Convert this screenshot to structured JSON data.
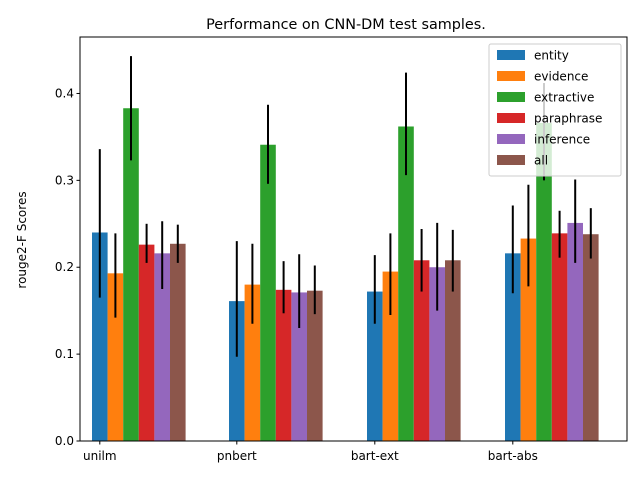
{
  "chart_data": {
    "type": "bar",
    "title": "Performance on CNN-DM test samples.",
    "xlabel": "",
    "ylabel": "rouge2-F Scores",
    "ylim": [
      0,
      0.465
    ],
    "yticks": [
      0.0,
      0.1,
      0.2,
      0.3,
      0.4
    ],
    "ytick_labels": [
      "0.0",
      "0.1",
      "0.2",
      "0.3",
      "0.4"
    ],
    "categories": [
      "unilm",
      "pnbert",
      "bart-ext",
      "bart-abs"
    ],
    "legend_position": "top-right",
    "grid": false,
    "series": [
      {
        "name": "entity",
        "color": "#1f77b4",
        "values": [
          0.24,
          0.161,
          0.172,
          0.216
        ],
        "err_low": [
          0.165,
          0.097,
          0.135,
          0.17
        ],
        "err_high": [
          0.336,
          0.23,
          0.214,
          0.271
        ]
      },
      {
        "name": "evidence",
        "color": "#ff7f0e",
        "values": [
          0.193,
          0.18,
          0.195,
          0.233
        ],
        "err_low": [
          0.142,
          0.135,
          0.145,
          0.178
        ],
        "err_high": [
          0.239,
          0.227,
          0.239,
          0.295
        ]
      },
      {
        "name": "extractive",
        "color": "#2ca02c",
        "values": [
          0.383,
          0.341,
          0.362,
          0.366
        ],
        "err_low": [
          0.323,
          0.296,
          0.306,
          0.3
        ],
        "err_high": [
          0.443,
          0.387,
          0.424,
          0.412
        ]
      },
      {
        "name": "paraphrase",
        "color": "#d62728",
        "values": [
          0.226,
          0.174,
          0.208,
          0.239
        ],
        "err_low": [
          0.205,
          0.147,
          0.172,
          0.211
        ],
        "err_high": [
          0.25,
          0.207,
          0.244,
          0.265
        ]
      },
      {
        "name": "inference",
        "color": "#9467bd",
        "values": [
          0.216,
          0.171,
          0.2,
          0.251
        ],
        "err_low": [
          0.175,
          0.13,
          0.15,
          0.205
        ],
        "err_high": [
          0.253,
          0.215,
          0.251,
          0.301
        ]
      },
      {
        "name": "all",
        "color": "#8c564b",
        "values": [
          0.227,
          0.173,
          0.208,
          0.238
        ],
        "err_low": [
          0.205,
          0.146,
          0.172,
          0.21
        ],
        "err_high": [
          0.249,
          0.202,
          0.243,
          0.268
        ]
      }
    ]
  }
}
